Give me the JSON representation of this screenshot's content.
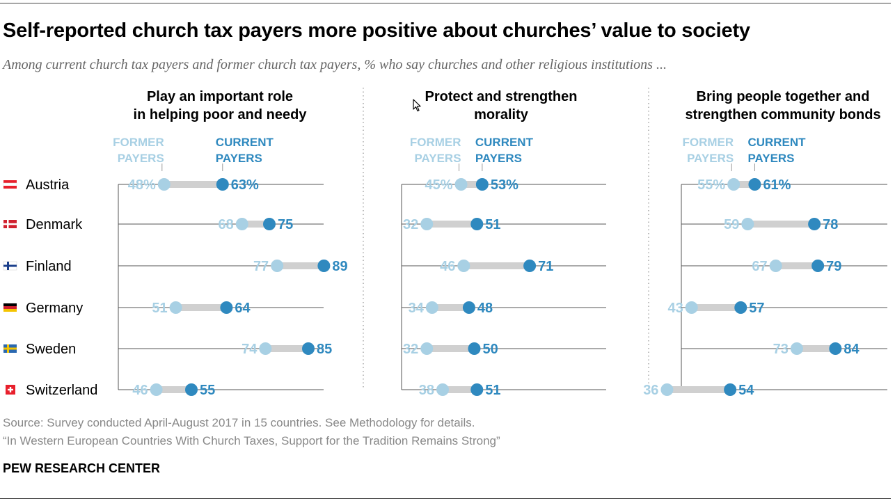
{
  "header": {
    "title": "Self-reported church tax payers more positive about churches’ value to society",
    "subtitle": "Among current church tax payers and former church tax payers, % who say churches and other religious institutions ..."
  },
  "footer": {
    "source": "Source: Survey conducted April-August 2017 in 15 countries. See Methodology for details.",
    "report": "“In Western European Countries With Church Taxes, Support for the Tradition Remains Strong”",
    "org": "PEW RESEARCH CENTER"
  },
  "colors": {
    "former": "#a8d0e4",
    "current": "#2f89bf",
    "connector": "#d0d0d0",
    "line": "#555555"
  },
  "legend": {
    "former": [
      "FORMER",
      "PAYERS"
    ],
    "current": [
      "CURRENT",
      "PAYERS"
    ]
  },
  "countries": [
    {
      "name": "Austria",
      "flag": "austria-flag-icon"
    },
    {
      "name": "Denmark",
      "flag": "denmark-flag-icon"
    },
    {
      "name": "Finland",
      "flag": "finland-flag-icon"
    },
    {
      "name": "Germany",
      "flag": "germany-flag-icon"
    },
    {
      "name": "Sweden",
      "flag": "sweden-flag-icon"
    },
    {
      "name": "Switzerland",
      "flag": "switzerland-flag-icon"
    }
  ],
  "chart_data": [
    {
      "type": "dot",
      "title": [
        "Play an important role",
        "in helping poor and needy"
      ],
      "categories": [
        "Austria",
        "Denmark",
        "Finland",
        "Germany",
        "Sweden",
        "Switzerland"
      ],
      "series": [
        {
          "name": "FORMER PAYERS",
          "values": [
            48,
            68,
            77,
            51,
            74,
            46
          ]
        },
        {
          "name": "CURRENT PAYERS",
          "values": [
            63,
            75,
            89,
            64,
            85,
            55
          ]
        }
      ],
      "first_row_suffix": "%"
    },
    {
      "type": "dot",
      "title": [
        "Protect and strengthen",
        "morality"
      ],
      "categories": [
        "Austria",
        "Denmark",
        "Finland",
        "Germany",
        "Sweden",
        "Switzerland"
      ],
      "series": [
        {
          "name": "FORMER PAYERS",
          "values": [
            45,
            32,
            46,
            34,
            32,
            38
          ]
        },
        {
          "name": "CURRENT PAYERS",
          "values": [
            53,
            51,
            71,
            48,
            50,
            51
          ]
        }
      ],
      "first_row_suffix": "%"
    },
    {
      "type": "dot",
      "title": [
        "Bring people together and",
        "strengthen community bonds"
      ],
      "categories": [
        "Austria",
        "Denmark",
        "Finland",
        "Germany",
        "Sweden",
        "Switzerland"
      ],
      "series": [
        {
          "name": "FORMER PAYERS",
          "values": [
            55,
            59,
            67,
            43,
            73,
            36
          ]
        },
        {
          "name": "CURRENT PAYERS",
          "values": [
            61,
            78,
            79,
            57,
            84,
            54
          ]
        }
      ],
      "first_row_suffix": "%"
    }
  ]
}
